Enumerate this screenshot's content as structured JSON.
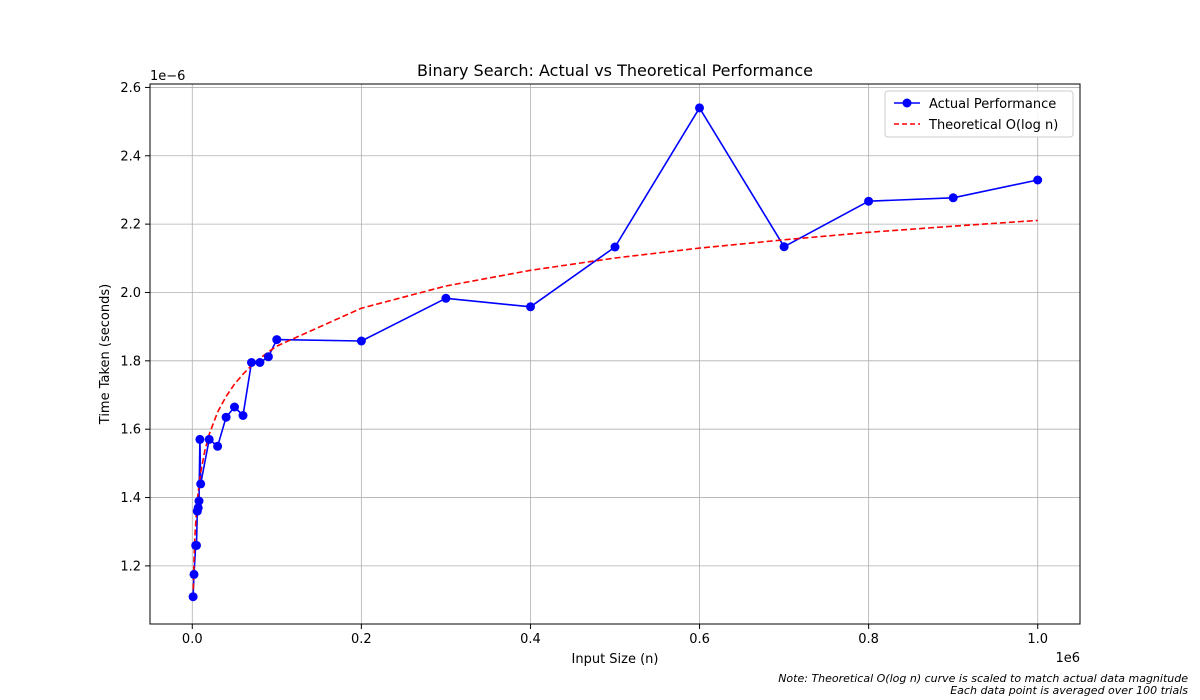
{
  "chart_data": {
    "type": "line",
    "title": "Binary Search: Actual vs Theoretical Performance",
    "xlabel": "Input Size (n)",
    "ylabel": "Time Taken (seconds)",
    "x_scale_label": "1e6",
    "y_scale_label": "1e−6",
    "xlim": [
      -50000,
      1050000
    ],
    "ylim": [
      1.03,
      2.61
    ],
    "x_ticks": [
      0,
      200000,
      400000,
      600000,
      800000,
      1000000
    ],
    "x_tick_labels": [
      "0.0",
      "0.2",
      "0.4",
      "0.6",
      "0.8",
      "1.0"
    ],
    "y_ticks": [
      1.2,
      1.4,
      1.6,
      1.8,
      2.0,
      2.2,
      2.4,
      2.6
    ],
    "y_tick_labels": [
      "1.2",
      "1.4",
      "1.6",
      "1.8",
      "2.0",
      "2.2",
      "2.4",
      "2.6"
    ],
    "grid": true,
    "legend_position": "top-right",
    "series": [
      {
        "name": "Actual Performance",
        "color": "#0000ff",
        "style": "solid-with-circle-markers",
        "x": [
          1000,
          2000,
          4000,
          5000,
          6000,
          7000,
          8000,
          9000,
          10000,
          20000,
          30000,
          40000,
          50000,
          60000,
          70000,
          80000,
          90000,
          100000,
          200000,
          300000,
          400000,
          500000,
          600000,
          700000,
          800000,
          900000,
          1000000
        ],
        "values": [
          1.11,
          1.175,
          1.26,
          1.26,
          1.36,
          1.37,
          1.39,
          1.57,
          1.44,
          1.57,
          1.55,
          1.635,
          1.665,
          1.64,
          1.795,
          1.795,
          1.812,
          1.862,
          1.858,
          1.983,
          1.958,
          2.133,
          2.54,
          2.134,
          2.267,
          2.277,
          2.329
        ]
      },
      {
        "name": "Theoretical O(log n)",
        "color": "#ff0000",
        "style": "dashed",
        "x": [
          1000,
          2000,
          3000,
          5000,
          7000,
          10000,
          15000,
          20000,
          30000,
          40000,
          50000,
          60000,
          70000,
          80000,
          90000,
          100000,
          200000,
          300000,
          400000,
          500000,
          600000,
          700000,
          800000,
          900000,
          1000000
        ],
        "values": [
          1.105,
          1.216,
          1.281,
          1.363,
          1.417,
          1.474,
          1.539,
          1.585,
          1.65,
          1.696,
          1.732,
          1.761,
          1.786,
          1.807,
          1.826,
          1.843,
          1.954,
          2.019,
          2.065,
          2.101,
          2.13,
          2.154,
          2.176,
          2.194,
          2.211
        ]
      }
    ]
  },
  "notes": [
    "Note: Theoretical O(log n) curve is scaled to match actual data magnitude",
    "Each data point is averaged over 100 trials"
  ]
}
